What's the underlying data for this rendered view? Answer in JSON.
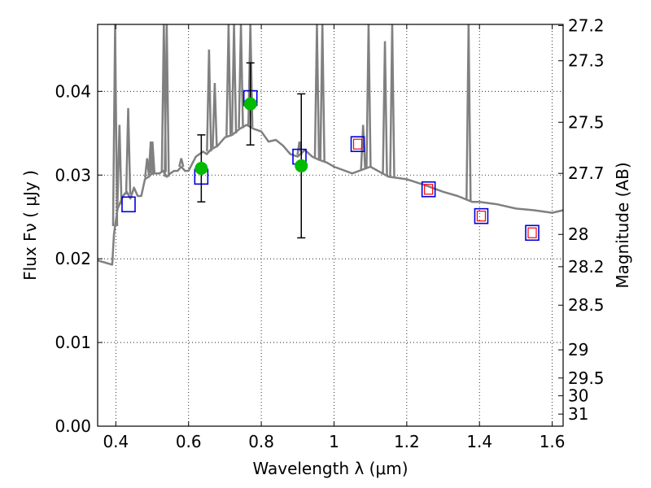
{
  "chart_data": {
    "type": "line",
    "title": "",
    "xlabel": "Wavelength  λ (μm)",
    "ylabel": "Flux  Fν  ( μJy )",
    "y2label": "Magnitude (AB)",
    "xlim": [
      0.35,
      1.63
    ],
    "ylim": [
      0.0,
      0.048
    ],
    "grid": true,
    "x_ticks": [
      {
        "value": 0.4,
        "label": "0.4"
      },
      {
        "value": 0.6,
        "label": "0.6"
      },
      {
        "value": 0.8,
        "label": "0.8"
      },
      {
        "value": 1.0,
        "label": "1"
      },
      {
        "value": 1.2,
        "label": "1.2"
      },
      {
        "value": 1.4,
        "label": "1.4"
      },
      {
        "value": 1.6,
        "label": "1.6"
      }
    ],
    "y_ticks": [
      {
        "value": 0.0,
        "label": "0.00"
      },
      {
        "value": 0.01,
        "label": "0.01"
      },
      {
        "value": 0.02,
        "label": "0.02"
      },
      {
        "value": 0.03,
        "label": "0.03"
      },
      {
        "value": 0.04,
        "label": "0.04"
      }
    ],
    "y2_ticks": [
      {
        "mag": 27.2,
        "label": "27.2"
      },
      {
        "mag": 27.3,
        "label": "27.3"
      },
      {
        "mag": 27.5,
        "label": "27.5"
      },
      {
        "mag": 27.7,
        "label": "27.7"
      },
      {
        "mag": 28.0,
        "label": "28"
      },
      {
        "mag": 28.2,
        "label": "28.2"
      },
      {
        "mag": 28.5,
        "label": "28.5"
      },
      {
        "mag": 29.0,
        "label": "29"
      },
      {
        "mag": 29.5,
        "label": "29.5"
      },
      {
        "mag": 30.0,
        "label": "30"
      },
      {
        "mag": 31.0,
        "label": "31"
      }
    ],
    "colors": {
      "spectrum": "#808080",
      "observed": "#00bb00",
      "model_box": "#0000dd",
      "model_inner": "#ff0000",
      "errorbar": "#000000",
      "grid": "#000000"
    },
    "series": [
      {
        "kind": "spectrum",
        "x": [
          0.35,
          0.39,
          0.395,
          0.4,
          0.405,
          0.41,
          0.415,
          0.42,
          0.425,
          0.43,
          0.44,
          0.45,
          0.46,
          0.47,
          0.48,
          0.49,
          0.5,
          0.51,
          0.52,
          0.53,
          0.54,
          0.55,
          0.56,
          0.57,
          0.58,
          0.59,
          0.6,
          0.62,
          0.63,
          0.64,
          0.65,
          0.66,
          0.68,
          0.7,
          0.72,
          0.74,
          0.76,
          0.78,
          0.8,
          0.82,
          0.84,
          0.86,
          0.88,
          0.9,
          0.92,
          0.94,
          0.96,
          0.98,
          1.0,
          1.05,
          1.1,
          1.15,
          1.2,
          1.25,
          1.3,
          1.34,
          1.38,
          1.4,
          1.45,
          1.5,
          1.55,
          1.6,
          1.63
        ],
        "y": [
          0.0198,
          0.0193,
          0.023,
          0.0245,
          0.026,
          0.0265,
          0.027,
          0.0275,
          0.0278,
          0.028,
          0.0272,
          0.0285,
          0.0275,
          0.0275,
          0.0295,
          0.0298,
          0.0302,
          0.0302,
          0.0302,
          0.0305,
          0.0298,
          0.0302,
          0.0305,
          0.0305,
          0.031,
          0.0305,
          0.0305,
          0.0322,
          0.0325,
          0.0328,
          0.0325,
          0.033,
          0.0335,
          0.0345,
          0.0348,
          0.0355,
          0.036,
          0.0355,
          0.0352,
          0.034,
          0.0342,
          0.0335,
          0.0325,
          0.0322,
          0.033,
          0.0322,
          0.0318,
          0.0315,
          0.031,
          0.0302,
          0.031,
          0.0298,
          0.0295,
          0.0288,
          0.028,
          0.0275,
          0.0268,
          0.0268,
          0.0265,
          0.026,
          0.0258,
          0.0255,
          0.0258
        ]
      },
      {
        "kind": "emission_lines",
        "x": [
          0.398,
          0.41,
          0.434,
          0.486,
          0.496,
          0.5007,
          0.532,
          0.54,
          0.58,
          0.6563,
          0.672,
          0.71,
          0.725,
          0.744,
          0.77,
          0.905,
          0.953,
          0.968,
          1.08,
          1.095,
          1.14,
          1.16,
          1.37
        ],
        "peak": [
          0.048,
          0.036,
          0.038,
          0.032,
          0.034,
          0.034,
          0.048,
          0.048,
          0.032,
          0.045,
          0.041,
          0.048,
          0.048,
          0.048,
          0.048,
          0.034,
          0.048,
          0.048,
          0.036,
          0.048,
          0.046,
          0.048,
          0.048
        ]
      },
      {
        "kind": "model_points",
        "x": [
          0.435,
          0.635,
          0.77,
          0.905,
          1.065,
          1.26,
          1.405,
          1.545
        ],
        "y": [
          0.0265,
          0.0298,
          0.0392,
          0.0322,
          0.0337,
          0.0283,
          0.0251,
          0.0231
        ],
        "inner": [
          false,
          false,
          false,
          false,
          true,
          true,
          true,
          true
        ]
      },
      {
        "kind": "observed_points",
        "x": [
          0.635,
          0.77,
          0.91
        ],
        "y": [
          0.0308,
          0.0385,
          0.0311
        ],
        "yerr": [
          0.004,
          0.0049,
          0.0086
        ]
      }
    ]
  }
}
